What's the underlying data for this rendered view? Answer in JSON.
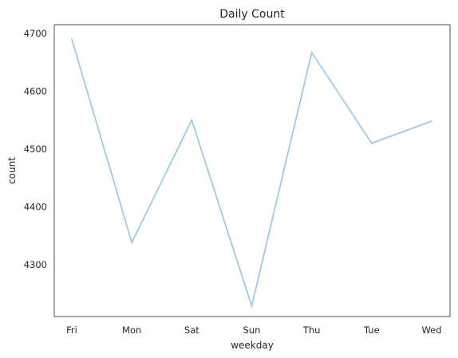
{
  "chart_data": {
    "type": "line",
    "title": "Daily Count",
    "xlabel": "weekday",
    "ylabel": "count",
    "categories": [
      "Fri",
      "Mon",
      "Sat",
      "Sun",
      "Thu",
      "Tue",
      "Wed"
    ],
    "series": [
      {
        "values": [
          4690,
          4338,
          4550,
          4228,
          4667,
          4510,
          4548
        ],
        "color": "#9ecae9"
      }
    ],
    "ylim": [
      4210,
      4715
    ],
    "yticks": [
      4300,
      4400,
      4500,
      4600,
      4700
    ],
    "grid": false,
    "legend": "none"
  }
}
